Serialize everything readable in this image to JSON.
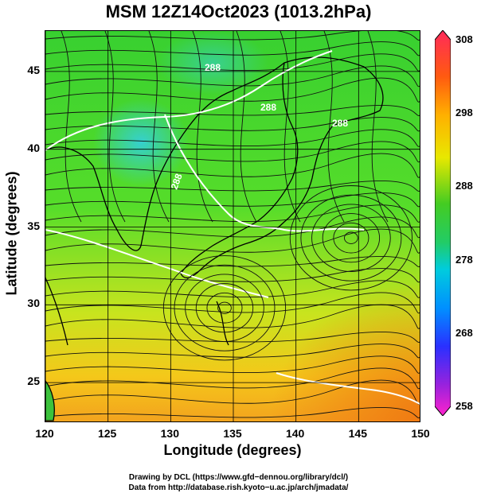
{
  "title": "MSM 12Z14Oct2023 (1013.2hPa)",
  "map": {
    "lon_range": [
      120,
      150
    ],
    "lat_range": [
      22.4,
      47.6
    ],
    "xlabel": "Longitude (degrees)",
    "ylabel": "Latitude  (degrees)",
    "x_ticks": [
      "120",
      "125",
      "130",
      "135",
      "140",
      "145",
      "150"
    ],
    "y_ticks": [
      "25",
      "30",
      "35",
      "40",
      "45"
    ],
    "grid": true,
    "field": "temperature (shaded) with streamlines and coastlines",
    "contour_labels": [
      "288",
      "288",
      "288",
      "288"
    ],
    "vortices": [
      {
        "name": "low-center-east",
        "lon": 144.4,
        "lat": 34.3
      },
      {
        "name": "low-center-south",
        "lon": 134.3,
        "lat": 29.8
      }
    ]
  },
  "colorbar": {
    "labels": [
      "308",
      "298",
      "288",
      "278",
      "268",
      "258"
    ],
    "range": [
      258,
      308
    ],
    "colors": [
      "#ff2a5a",
      "#ff7a00",
      "#ffd000",
      "#22cc22",
      "#00ccff",
      "#2a40ff",
      "#cc22cc"
    ]
  },
  "credits": {
    "line1": "Drawing by DCL (https://www.gfd−dennou.org/library/dcl/)",
    "line2": "Data from http://database.rish.kyoto−u.ac.jp/arch/jmadata/"
  }
}
